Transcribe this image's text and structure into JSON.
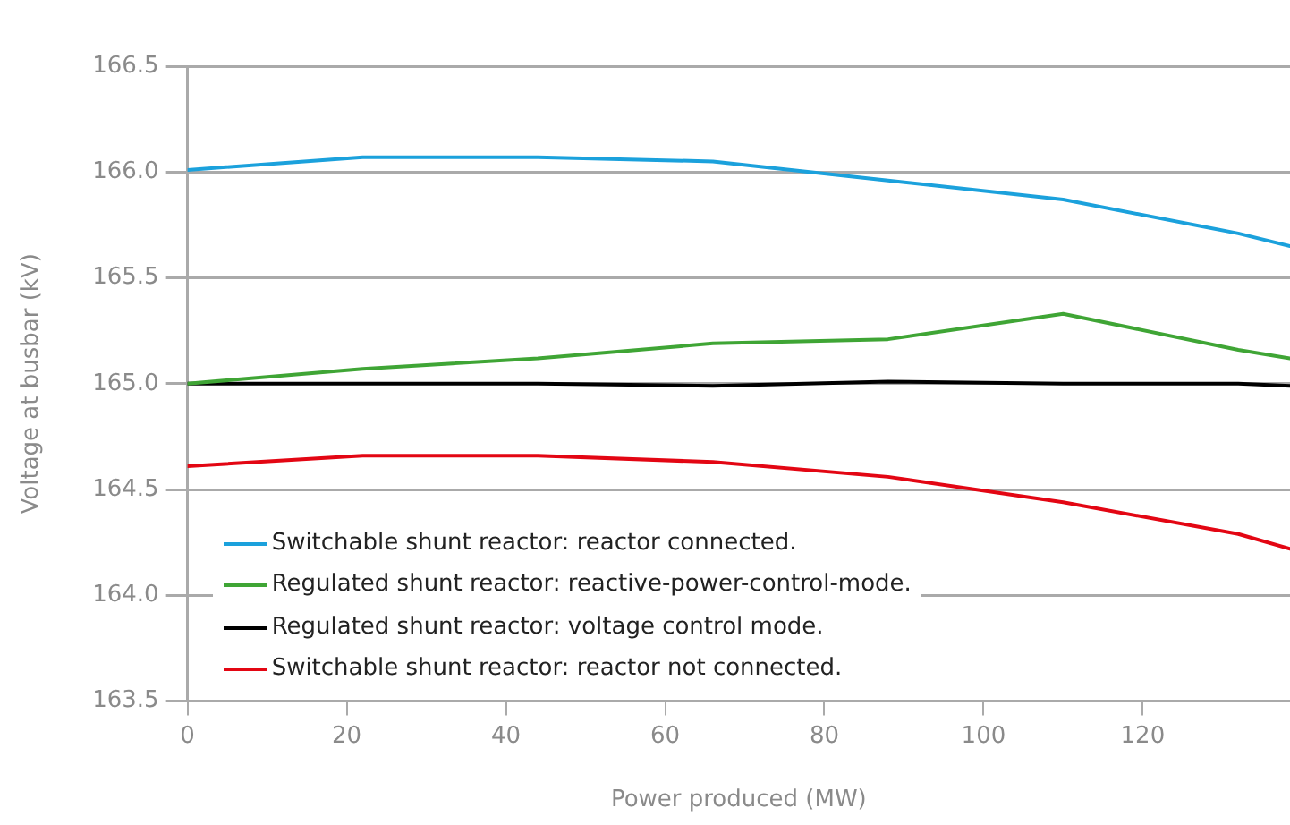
{
  "chart_data": {
    "type": "line",
    "xlabel": "Power produced (MW)",
    "ylabel": "Voltage at busbar (kV)",
    "x": [
      0,
      22,
      44,
      66,
      88,
      110,
      132,
      138.5
    ],
    "series": [
      {
        "name": "Switchable shunt reactor: reactor connected.",
        "color": "#1ba1dc",
        "values": [
          166.01,
          166.07,
          166.07,
          166.05,
          165.96,
          165.87,
          165.71,
          165.65
        ]
      },
      {
        "name": "Regulated shunt reactor: reactive-power-control-mode.",
        "color": "#3fa535",
        "values": [
          165.0,
          165.07,
          165.12,
          165.19,
          165.21,
          165.33,
          165.16,
          165.12
        ]
      },
      {
        "name": "Regulated shunt reactor: voltage control mode.",
        "color": "#000000",
        "values": [
          165.0,
          165.0,
          165.0,
          164.99,
          165.01,
          165.0,
          165.0,
          164.99
        ]
      },
      {
        "name": "Switchable shunt reactor: reactor not connected.",
        "color": "#e30613",
        "values": [
          164.61,
          164.66,
          164.66,
          164.63,
          164.56,
          164.44,
          164.29,
          164.22
        ]
      }
    ],
    "xlim": [
      0,
      138.5
    ],
    "xticks": [
      0,
      20,
      40,
      60,
      80,
      100,
      120
    ],
    "ylim": [
      163.5,
      166.5
    ],
    "yticks": [
      {
        "value": 163.5,
        "label": "163.5"
      },
      {
        "value": 164,
        "label": "164.0"
      },
      {
        "value": 164.5,
        "label": "164.5"
      },
      {
        "value": 165,
        "label": "165.0"
      },
      {
        "value": 165.5,
        "label": "165.5"
      },
      {
        "value": 166,
        "label": "166.0"
      },
      {
        "value": 166.5,
        "label": "166.5"
      }
    ],
    "grid": "y",
    "legend": "bottom left",
    "marker": "none",
    "line_style": "solid"
  }
}
